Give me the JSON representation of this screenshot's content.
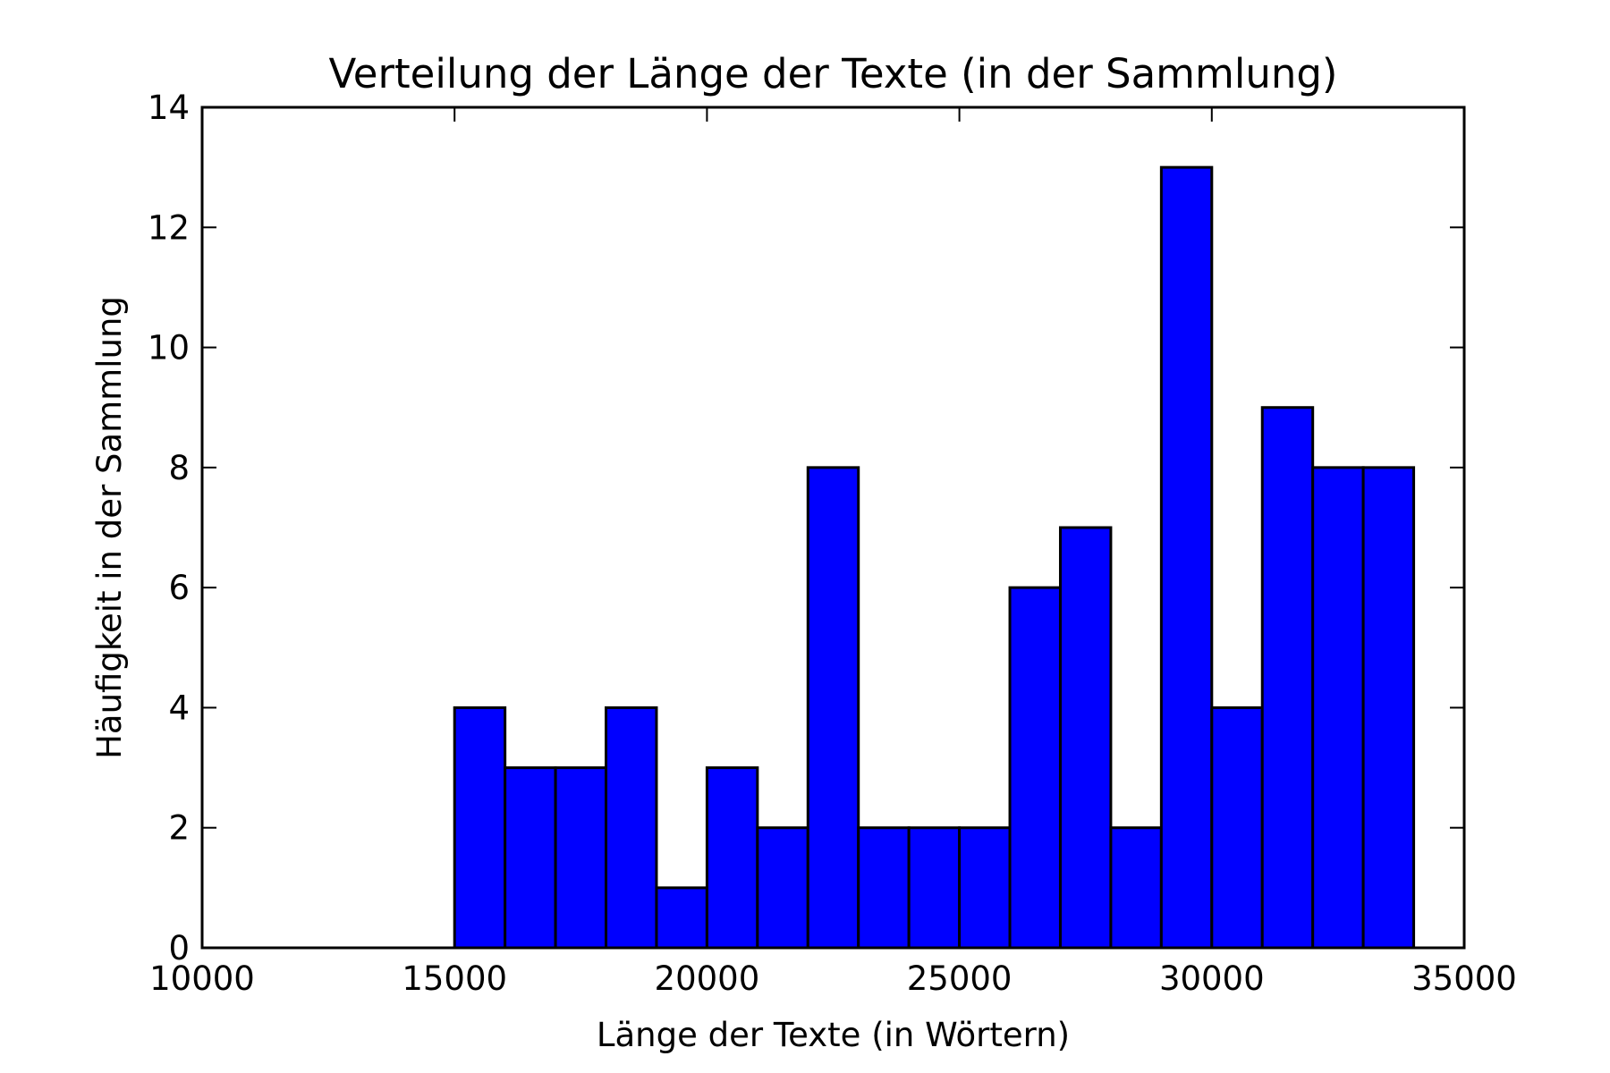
{
  "chart_data": {
    "type": "bar",
    "title": "Verteilung der Länge der Texte (in der Sammlung)",
    "xlabel": "Länge der Texte (in Wörtern)",
    "ylabel": "Häufigkeit in der Sammlung",
    "xlim": [
      10000,
      35000
    ],
    "ylim": [
      0,
      14
    ],
    "x_ticks": [
      "10000",
      "15000",
      "20000",
      "25000",
      "30000",
      "35000"
    ],
    "y_ticks": [
      "0",
      "2",
      "4",
      "6",
      "8",
      "10",
      "12",
      "14"
    ],
    "bin_edges": [
      15000,
      16000,
      17000,
      18000,
      19000,
      20000,
      21000,
      22000,
      23000,
      24000,
      25000,
      26000,
      27000,
      28000,
      29000,
      30000,
      31000,
      32000,
      33000,
      34000
    ],
    "values": [
      4,
      3,
      3,
      4,
      1,
      3,
      2,
      8,
      2,
      2,
      2,
      6,
      7,
      2,
      13,
      4,
      9,
      8,
      8
    ],
    "grid": false,
    "colors": {
      "bar_fill": "#0000ff",
      "bar_edge": "#000000",
      "axes": "#000000",
      "background": "#ffffff"
    }
  }
}
